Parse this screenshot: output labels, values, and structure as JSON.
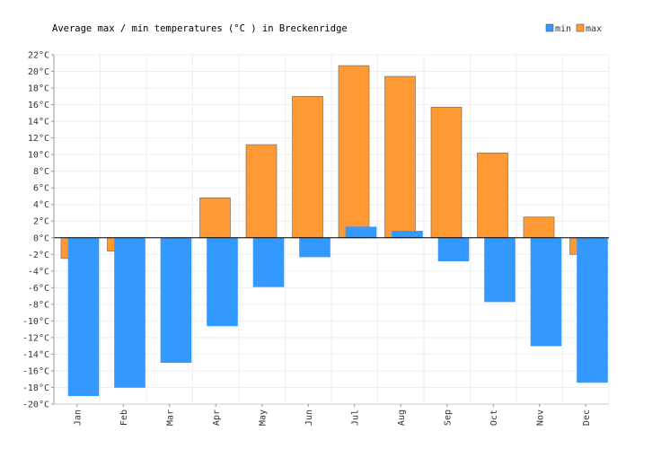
{
  "chart_data": {
    "type": "bar",
    "title": "Average max / min temperatures (°C ) in Breckenridge",
    "xlabel": "",
    "ylabel": "",
    "categories": [
      "Jan",
      "Feb",
      "Mar",
      "Apr",
      "May",
      "Jun",
      "Jul",
      "Aug",
      "Sep",
      "Oct",
      "Nov",
      "Dec"
    ],
    "series": [
      {
        "name": "min",
        "color": "#3399ff",
        "values": [
          -19.0,
          -18.0,
          -15.0,
          -10.6,
          -5.9,
          -2.3,
          1.3,
          0.8,
          -2.8,
          -7.7,
          -13.0,
          -17.4
        ]
      },
      {
        "name": "max",
        "color": "#ff9933",
        "values": [
          -2.5,
          -1.6,
          0.0,
          4.8,
          11.2,
          17.0,
          20.7,
          19.4,
          15.7,
          10.2,
          2.5,
          -2.0
        ]
      }
    ],
    "ylim": [
      -20,
      22
    ],
    "yticks": [
      22,
      20,
      18,
      16,
      14,
      12,
      10,
      8,
      6,
      4,
      2,
      0,
      -2,
      -4,
      -6,
      -8,
      -10,
      -12,
      -14,
      -16,
      -18,
      -20
    ],
    "ytick_labels": [
      "22°C",
      "20°C",
      "18°C",
      "16°C",
      "14°C",
      "12°C",
      "10°C",
      "8°C",
      "6°C",
      "4°C",
      "2°C",
      "0°C",
      "-2°C",
      "-4°C",
      "-6°C",
      "-8°C",
      "-10°C",
      "-12°C",
      "-14°C",
      "-16°C",
      "-18°C",
      "-20°C"
    ],
    "grid": true,
    "legend": "top-right"
  }
}
